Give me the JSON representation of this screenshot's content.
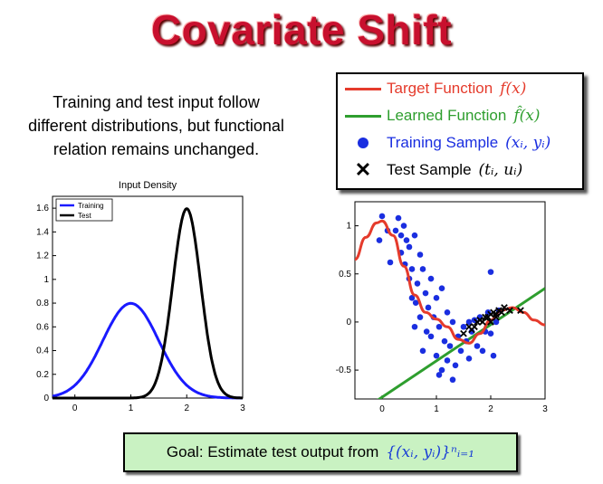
{
  "title": "Covariate Shift",
  "description": [
    "Training and test input follow",
    "different distributions, but functional",
    "relation remains unchanged."
  ],
  "legend": {
    "target": {
      "text": "Target Function",
      "math": "f(x)",
      "color": "#e53b2c"
    },
    "learned": {
      "text": "Learned Function",
      "math": "f̂(x)",
      "color": "#2e9e2e"
    },
    "training": {
      "text": "Training Sample",
      "math": "(xᵢ, yᵢ)",
      "color": "#1a2ee0"
    },
    "test": {
      "text": "Test Sample",
      "math": "(tᵢ, uᵢ)",
      "color": "#000000"
    }
  },
  "goal": {
    "text": "Goal: Estimate test output from",
    "math": "{(xᵢ, yᵢ)}ⁿᵢ₌₁"
  },
  "chart_data": [
    {
      "type": "line",
      "title": "Input Density",
      "xlim": [
        -0.4,
        3
      ],
      "ylim": [
        0,
        1.7
      ],
      "xticks": [
        0,
        1,
        2,
        3
      ],
      "yticks": [
        0,
        0.2,
        0.4,
        0.6,
        0.8,
        1,
        1.2,
        1.4,
        1.6
      ],
      "legend_position": "top-left",
      "series": [
        {
          "name": "Training",
          "color": "#1a1aff",
          "mean": 1.0,
          "std": 0.5,
          "x": [
            -0.4,
            -0.2,
            0,
            0.2,
            0.4,
            0.6,
            0.8,
            1,
            1.2,
            1.4,
            1.6,
            1.8,
            2,
            2.2,
            2.4,
            2.6,
            2.8,
            3
          ],
          "y": [
            0.015,
            0.032,
            0.065,
            0.119,
            0.195,
            0.29,
            0.737,
            0.798,
            0.737,
            0.29,
            0.195,
            0.119,
            0.065,
            0.032,
            0.015,
            0.006,
            0.002,
            0.001
          ]
        },
        {
          "name": "Test",
          "color": "#000000",
          "mean": 2.0,
          "std": 0.25,
          "x": [
            1,
            1.2,
            1.4,
            1.5,
            1.6,
            1.7,
            1.8,
            1.9,
            2,
            2.1,
            2.2,
            2.3,
            2.4,
            2.5,
            2.6,
            2.8,
            3
          ],
          "y": [
            0.001,
            0.01,
            0.089,
            0.216,
            0.444,
            0.778,
            1.16,
            1.47,
            1.6,
            1.47,
            1.16,
            0.778,
            0.444,
            0.216,
            0.089,
            0.01,
            0.001
          ]
        }
      ]
    },
    {
      "type": "scatter",
      "xlim": [
        -0.5,
        3
      ],
      "ylim": [
        -0.8,
        1.25
      ],
      "xticks": [
        0,
        1,
        2,
        3
      ],
      "yticks": [
        -0.5,
        0,
        0.5,
        1
      ],
      "target_function": {
        "x": [
          -0.5,
          -0.3,
          -0.1,
          0,
          0.2,
          0.4,
          0.6,
          0.8,
          1,
          1.2,
          1.4,
          1.6,
          1.8,
          2,
          2.2,
          2.4,
          2.6,
          2.8,
          3
        ],
        "y": [
          0.65,
          0.88,
          1.03,
          1.05,
          0.9,
          0.58,
          0.28,
          0.1,
          0.03,
          -0.05,
          -0.18,
          -0.22,
          -0.12,
          0.02,
          0.12,
          0.15,
          0.1,
          0.02,
          -0.03
        ]
      },
      "learned_function": {
        "x": [
          -0.5,
          3
        ],
        "y": [
          -0.97,
          0.35
        ]
      },
      "training_samples": [
        [
          -0.05,
          0.85
        ],
        [
          0.0,
          1.1
        ],
        [
          0.1,
          0.95
        ],
        [
          0.15,
          0.62
        ],
        [
          0.25,
          0.95
        ],
        [
          0.3,
          1.08
        ],
        [
          0.35,
          0.72
        ],
        [
          0.35,
          0.9
        ],
        [
          0.4,
          1.0
        ],
        [
          0.42,
          0.6
        ],
        [
          0.45,
          0.85
        ],
        [
          0.5,
          0.45
        ],
        [
          0.5,
          0.78
        ],
        [
          0.55,
          0.25
        ],
        [
          0.55,
          0.55
        ],
        [
          0.6,
          0.9
        ],
        [
          0.62,
          0.2
        ],
        [
          0.65,
          0.4
        ],
        [
          0.7,
          0.7
        ],
        [
          0.7,
          0.05
        ],
        [
          0.75,
          0.55
        ],
        [
          0.8,
          0.3
        ],
        [
          0.82,
          -0.1
        ],
        [
          0.85,
          0.15
        ],
        [
          0.9,
          0.45
        ],
        [
          0.9,
          -0.15
        ],
        [
          0.95,
          0.05
        ],
        [
          1.0,
          0.25
        ],
        [
          1.0,
          -0.35
        ],
        [
          1.05,
          -0.05
        ],
        [
          1.1,
          0.35
        ],
        [
          1.1,
          -0.5
        ],
        [
          1.15,
          -0.2
        ],
        [
          1.2,
          0.1
        ],
        [
          1.2,
          -0.4
        ],
        [
          1.25,
          -0.25
        ],
        [
          1.3,
          0.0
        ],
        [
          1.35,
          -0.45
        ],
        [
          1.4,
          -0.15
        ],
        [
          1.45,
          -0.3
        ],
        [
          1.5,
          -0.05
        ],
        [
          1.55,
          -0.2
        ],
        [
          1.6,
          -0.38
        ],
        [
          1.65,
          -0.1
        ],
        [
          1.7,
          0.02
        ],
        [
          1.75,
          -0.25
        ],
        [
          1.8,
          0.05
        ],
        [
          1.85,
          -0.3
        ],
        [
          1.9,
          -0.1
        ],
        [
          1.95,
          0.1
        ],
        [
          2.0,
          -0.12
        ],
        [
          2.0,
          0.52
        ],
        [
          2.05,
          -0.35
        ],
        [
          2.1,
          0.0
        ],
        [
          2.15,
          0.12
        ],
        [
          1.6,
          0.0
        ],
        [
          1.3,
          -0.6
        ],
        [
          1.05,
          -0.55
        ],
        [
          0.6,
          -0.05
        ],
        [
          0.75,
          -0.3
        ]
      ],
      "test_samples": [
        [
          1.5,
          -0.12
        ],
        [
          1.6,
          -0.05
        ],
        [
          1.7,
          -0.05
        ],
        [
          1.75,
          0.0
        ],
        [
          1.8,
          0.02
        ],
        [
          1.85,
          0.0
        ],
        [
          1.9,
          0.05
        ],
        [
          1.95,
          0.05
        ],
        [
          2.0,
          0.08
        ],
        [
          2.05,
          0.1
        ],
        [
          2.1,
          0.08
        ],
        [
          2.15,
          0.12
        ],
        [
          2.2,
          0.1
        ],
        [
          2.25,
          0.15
        ],
        [
          2.35,
          0.12
        ],
        [
          2.55,
          0.12
        ],
        [
          1.65,
          -0.08
        ],
        [
          2.0,
          0.0
        ],
        [
          2.1,
          0.05
        ]
      ]
    }
  ]
}
